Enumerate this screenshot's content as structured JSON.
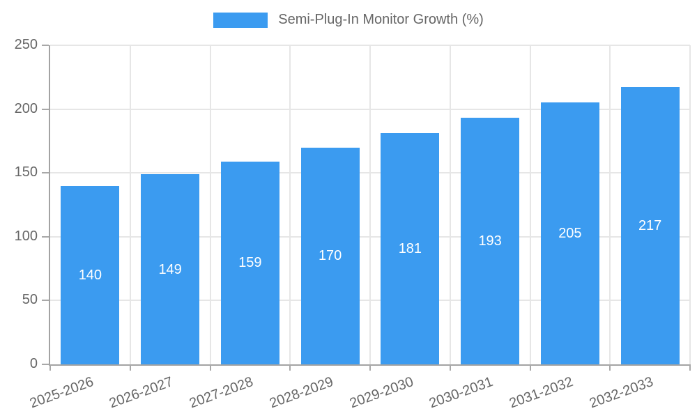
{
  "legend": {
    "label": "Semi-Plug-In Monitor Growth (%)"
  },
  "chart_data": {
    "type": "bar",
    "title": "Semi-Plug-In Monitor Growth (%)",
    "categories": [
      "2025-2026",
      "2026-2027",
      "2027-2028",
      "2028-2029",
      "2029-2030",
      "2030-2031",
      "2031-2032",
      "2032-2033"
    ],
    "series": [
      {
        "name": "Semi-Plug-In Monitor Growth (%)",
        "values": [
          140,
          149,
          159,
          170,
          181,
          193,
          205,
          217
        ]
      }
    ],
    "value_labels": [
      "140",
      "149",
      "159",
      "170",
      "181",
      "193",
      "205",
      "217"
    ],
    "xlabel": "",
    "ylabel": "",
    "ylim": [
      0,
      250
    ],
    "yticks": [
      0,
      50,
      100,
      150,
      200,
      250
    ],
    "grid": true,
    "legend_position": "top",
    "x_label_rotation_deg": -20,
    "colors": {
      "bar": "#3B9BF0",
      "value_label": "#FFFFFF",
      "axis": "#A3A3A3",
      "gridline": "#E6E6E6",
      "tick_mark": "#A8A8A8",
      "tick_label": "#666666",
      "legend_text": "#666666",
      "background": "#FFFFFF"
    }
  }
}
